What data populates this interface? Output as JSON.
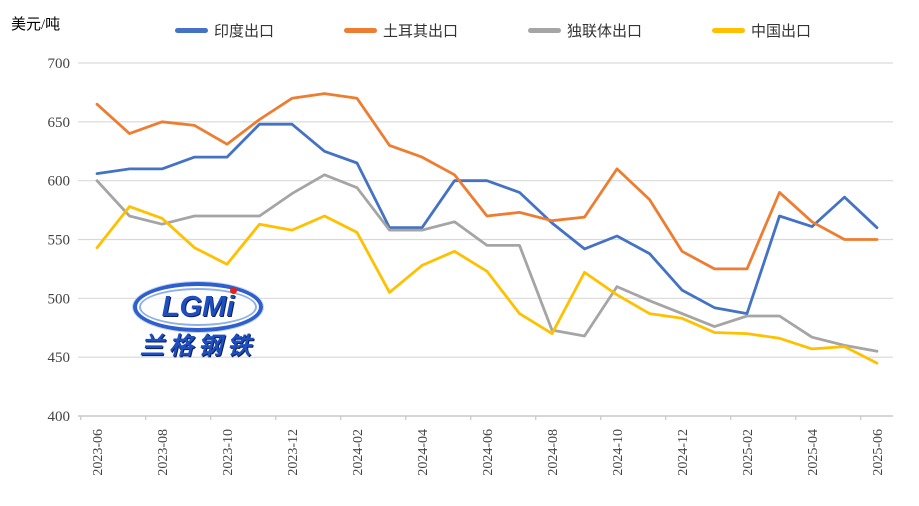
{
  "unit_label": "美元/吨",
  "watermark": {
    "line1": "LGM",
    "line1_last": "i",
    "line2": "兰格钢铁"
  },
  "colors": {
    "india": "#4472C4",
    "turkey": "#ED7D31",
    "cis": "#A5A5A5",
    "china": "#FFC000",
    "gridline": "#D9D9D9",
    "axis": "#C8C8C8",
    "tick_text": "#444444"
  },
  "chart_data": {
    "type": "line",
    "title": "",
    "ylabel": "美元/吨",
    "ylim": [
      400,
      700
    ],
    "yticks": [
      400,
      450,
      500,
      550,
      600,
      650,
      700
    ],
    "grid": "horizontal",
    "legend_position": "top",
    "x": [
      "2023-06",
      "2023-07",
      "2023-08",
      "2023-09",
      "2023-10",
      "2023-11",
      "2023-12",
      "2024-01",
      "2024-02",
      "2024-03",
      "2024-04",
      "2024-05",
      "2024-06",
      "2024-07",
      "2024-08",
      "2024-09",
      "2024-10",
      "2024-11",
      "2024-12",
      "2025-01",
      "2025-02",
      "2025-03",
      "2025-04",
      "2025-05",
      "2025-06"
    ],
    "x_tick_labels_shown": [
      "2023-06",
      "2023-08",
      "2023-10",
      "2023-12",
      "2024-02",
      "2024-04",
      "2024-06",
      "2024-08",
      "2024-10",
      "2024-12",
      "2025-02",
      "2025-04",
      "2025-06"
    ],
    "series": [
      {
        "name": "印度出口",
        "color": "#4472C4",
        "values": [
          606,
          610,
          610,
          620,
          620,
          648,
          648,
          625,
          615,
          560,
          560,
          600,
          600,
          590,
          564,
          542,
          553,
          538,
          507,
          492,
          487,
          570,
          561,
          586,
          560
        ]
      },
      {
        "name": "土耳其出口",
        "color": "#ED7D31",
        "values": [
          665,
          640,
          650,
          647,
          631,
          652,
          670,
          674,
          670,
          630,
          620,
          605,
          570,
          573,
          566,
          569,
          610,
          584,
          540,
          525,
          525,
          590,
          565,
          550,
          550
        ]
      },
      {
        "name": "独联体出口",
        "color": "#A5A5A5",
        "values": [
          600,
          570,
          563,
          570,
          570,
          570,
          589,
          605,
          594,
          558,
          558,
          565,
          545,
          545,
          473,
          468,
          510,
          498,
          487,
          476,
          485,
          485,
          467,
          460,
          455
        ]
      },
      {
        "name": "中国出口",
        "color": "#FFC000",
        "values": [
          543,
          578,
          568,
          543,
          529,
          563,
          558,
          570,
          556,
          505,
          528,
          540,
          523,
          487,
          470,
          522,
          503,
          487,
          483,
          471,
          470,
          466,
          457,
          459,
          445
        ]
      }
    ]
  }
}
